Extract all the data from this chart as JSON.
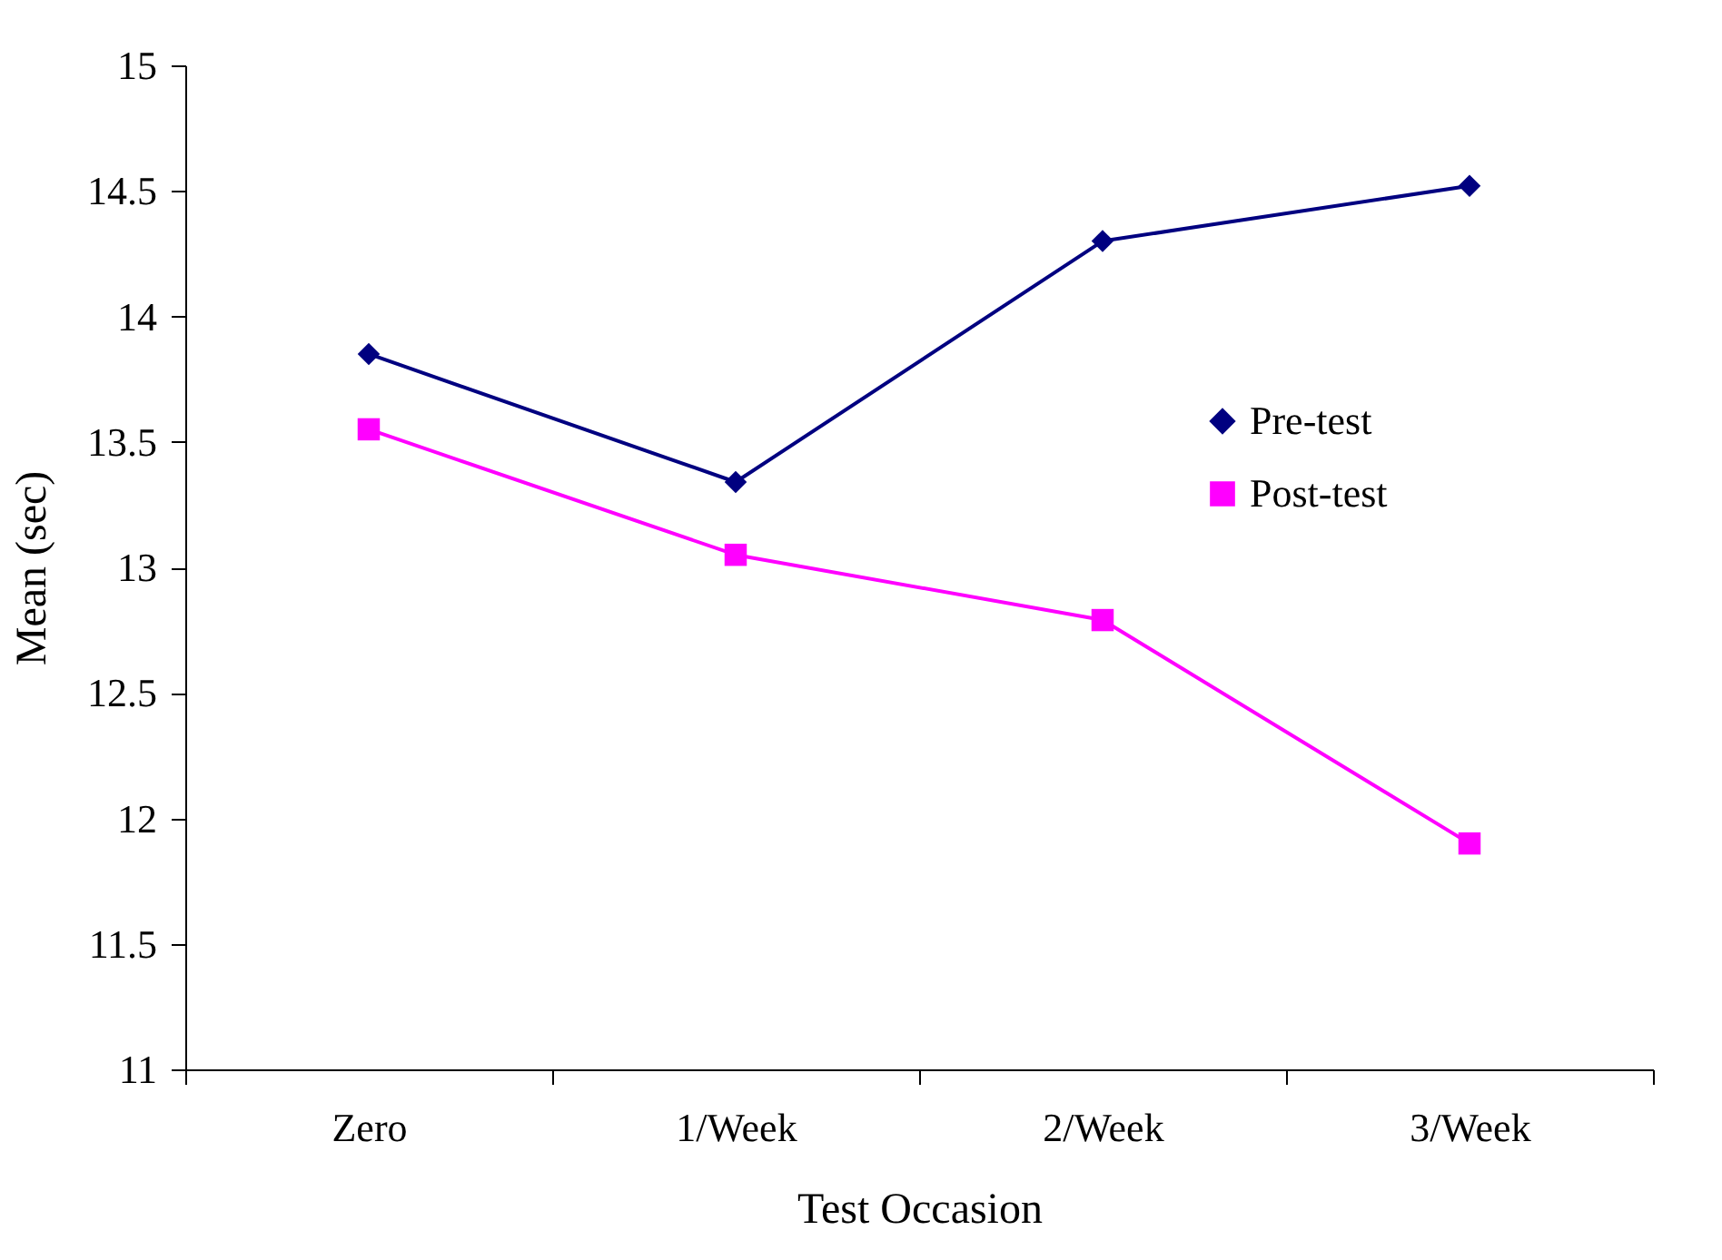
{
  "chart_data": {
    "type": "line",
    "xlabel": "Test Occasion",
    "ylabel": "Mean (sec)",
    "categories": [
      "Zero",
      "1/Week",
      "2/Week",
      "3/Week"
    ],
    "series": [
      {
        "name": "Pre-test",
        "color": "#000080",
        "marker": "diamond",
        "values": [
          13.85,
          13.34,
          14.3,
          14.52
        ]
      },
      {
        "name": "Post-test",
        "color": "#ff00ff",
        "marker": "square",
        "values": [
          13.55,
          13.05,
          12.79,
          11.9
        ]
      }
    ],
    "ylim": [
      11,
      15
    ],
    "yticks": [
      11,
      11.5,
      12,
      12.5,
      13,
      13.5,
      14,
      14.5,
      15
    ],
    "grid": false,
    "legend": "right",
    "line_style": "solid"
  }
}
